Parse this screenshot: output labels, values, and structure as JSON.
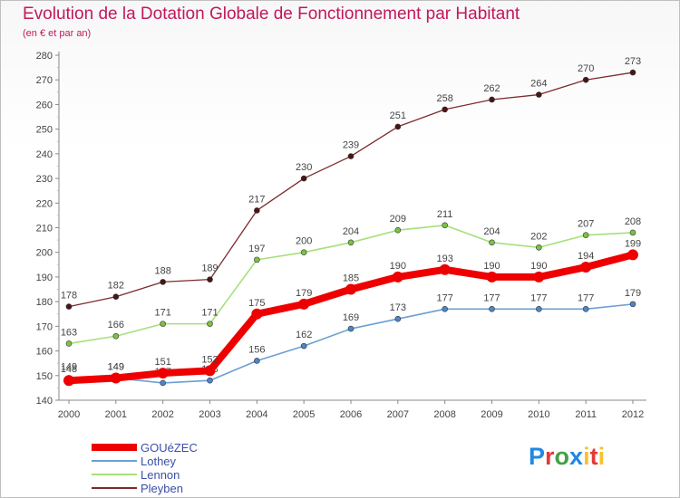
{
  "title": "Evolution de la Dotation Globale de Fonctionnement par Habitant",
  "subtitle": "(en € et par an)",
  "logo": {
    "text": "Proxiti"
  },
  "chart_data": {
    "type": "line",
    "title": "Evolution de la Dotation Globale de Fonctionnement par Habitant",
    "ylabel": "(en € et par an)",
    "xlabel": "",
    "categories": [
      "2000",
      "2001",
      "2002",
      "2003",
      "2004",
      "2005",
      "2006",
      "2007",
      "2008",
      "2009",
      "2010",
      "2011",
      "2012"
    ],
    "ylim": [
      140,
      280
    ],
    "yticks": [
      140,
      150,
      160,
      170,
      180,
      190,
      200,
      210,
      220,
      230,
      240,
      250,
      260,
      270,
      280
    ],
    "grid": false,
    "legend_position": "bottom-left",
    "series": [
      {
        "name": "Pleyben",
        "color": "#7b2b2b",
        "marker": "#4a1414",
        "width": 1.3,
        "values": [
          178,
          182,
          188,
          189,
          217,
          230,
          239,
          251,
          258,
          262,
          264,
          270,
          273
        ]
      },
      {
        "name": "Lennon",
        "color": "#a6e07a",
        "marker": "#7cc242",
        "width": 1.6,
        "values": [
          163,
          166,
          171,
          171,
          197,
          200,
          204,
          209,
          211,
          204,
          202,
          207,
          208
        ]
      },
      {
        "name": "Lothey",
        "color": "#6b9fd4",
        "marker": "#4a86c8",
        "width": 1.6,
        "values": [
          149,
          149,
          147,
          148,
          156,
          162,
          169,
          173,
          177,
          177,
          177,
          177,
          179
        ]
      },
      {
        "name": "GOUéZEC",
        "color": "#ee0000",
        "marker": "#ee0000",
        "width": 8,
        "values": [
          148,
          149,
          151,
          152,
          175,
          179,
          185,
          190,
          193,
          190,
          190,
          194,
          199
        ]
      }
    ],
    "legend": [
      "GOUéZEC",
      "Lothey",
      "Lennon",
      "Pleyben"
    ]
  }
}
